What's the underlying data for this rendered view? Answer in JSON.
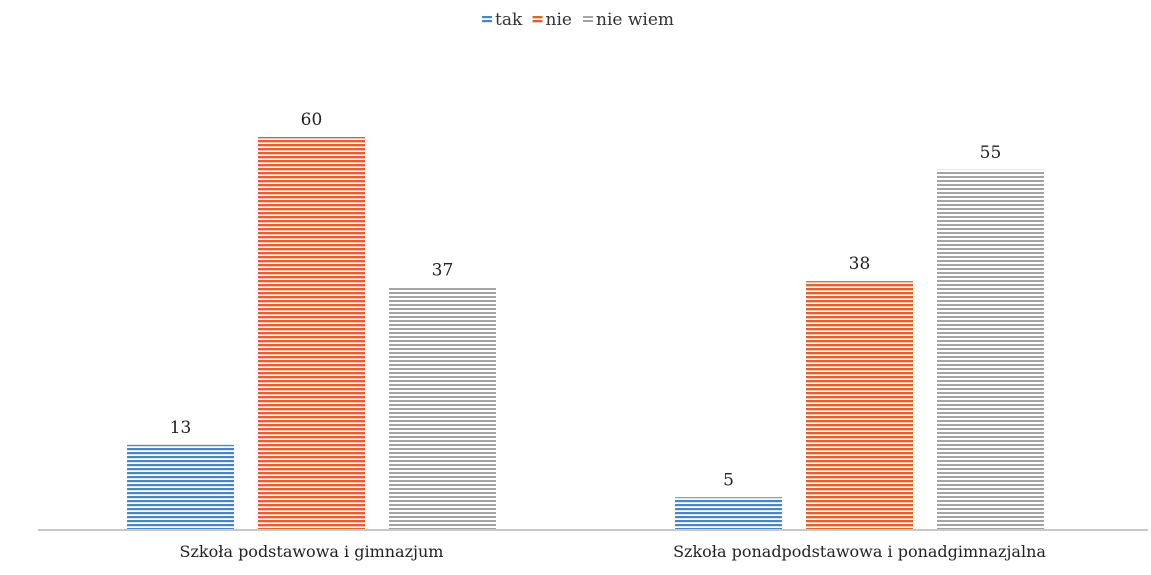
{
  "chart_data": {
    "type": "bar",
    "categories": [
      "Szkoła podstawowa i gimnazjum",
      "Szkoła ponadpodstawowa i ponadgimnazjalna"
    ],
    "series": [
      {
        "name": "tak",
        "values": [
          13,
          5
        ],
        "color": "#4a86c5"
      },
      {
        "name": "nie",
        "values": [
          60,
          38
        ],
        "color": "#e0622e"
      },
      {
        "name": "nie wiem",
        "values": [
          37,
          55
        ],
        "color": "#a3a3a3"
      }
    ],
    "ylim": [
      0,
      60
    ],
    "legend_position": "top-center",
    "grid": false,
    "data_labels": true
  }
}
